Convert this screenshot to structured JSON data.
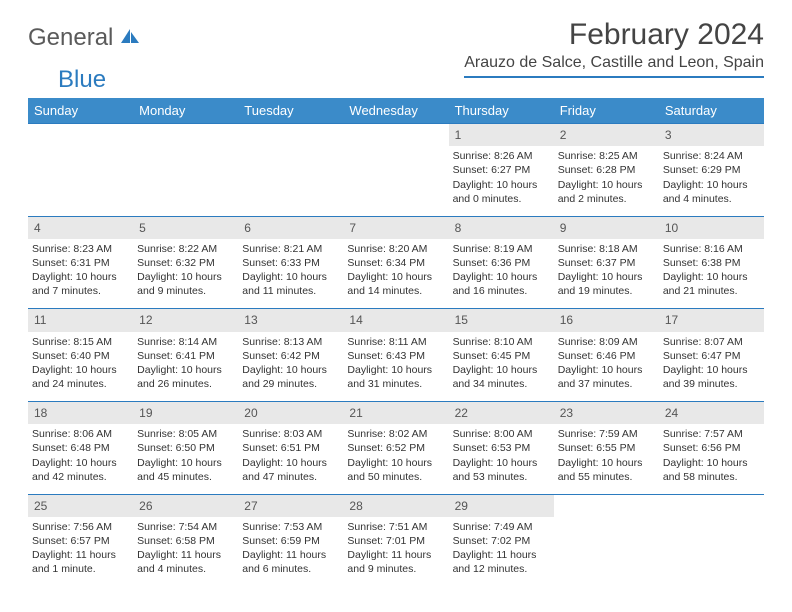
{
  "logo": {
    "text1": "General",
    "text2": "Blue"
  },
  "title": "February 2024",
  "location": "Arauzo de Salce, Castille and Leon, Spain",
  "colors": {
    "header_bg": "#3b8bc9",
    "header_text": "#ffffff",
    "daynum_bg": "#e8e8e8",
    "rule": "#2b7bbf",
    "body_text": "#333333",
    "logo_gray": "#5a5a5a",
    "logo_blue": "#2b7bbf"
  },
  "weekdays": [
    "Sunday",
    "Monday",
    "Tuesday",
    "Wednesday",
    "Thursday",
    "Friday",
    "Saturday"
  ],
  "weeks": [
    {
      "nums": [
        "",
        "",
        "",
        "",
        "1",
        "2",
        "3"
      ],
      "cells": [
        null,
        null,
        null,
        null,
        {
          "sunrise": "Sunrise: 8:26 AM",
          "sunset": "Sunset: 6:27 PM",
          "day1": "Daylight: 10 hours",
          "day2": "and 0 minutes."
        },
        {
          "sunrise": "Sunrise: 8:25 AM",
          "sunset": "Sunset: 6:28 PM",
          "day1": "Daylight: 10 hours",
          "day2": "and 2 minutes."
        },
        {
          "sunrise": "Sunrise: 8:24 AM",
          "sunset": "Sunset: 6:29 PM",
          "day1": "Daylight: 10 hours",
          "day2": "and 4 minutes."
        }
      ]
    },
    {
      "nums": [
        "4",
        "5",
        "6",
        "7",
        "8",
        "9",
        "10"
      ],
      "cells": [
        {
          "sunrise": "Sunrise: 8:23 AM",
          "sunset": "Sunset: 6:31 PM",
          "day1": "Daylight: 10 hours",
          "day2": "and 7 minutes."
        },
        {
          "sunrise": "Sunrise: 8:22 AM",
          "sunset": "Sunset: 6:32 PM",
          "day1": "Daylight: 10 hours",
          "day2": "and 9 minutes."
        },
        {
          "sunrise": "Sunrise: 8:21 AM",
          "sunset": "Sunset: 6:33 PM",
          "day1": "Daylight: 10 hours",
          "day2": "and 11 minutes."
        },
        {
          "sunrise": "Sunrise: 8:20 AM",
          "sunset": "Sunset: 6:34 PM",
          "day1": "Daylight: 10 hours",
          "day2": "and 14 minutes."
        },
        {
          "sunrise": "Sunrise: 8:19 AM",
          "sunset": "Sunset: 6:36 PM",
          "day1": "Daylight: 10 hours",
          "day2": "and 16 minutes."
        },
        {
          "sunrise": "Sunrise: 8:18 AM",
          "sunset": "Sunset: 6:37 PM",
          "day1": "Daylight: 10 hours",
          "day2": "and 19 minutes."
        },
        {
          "sunrise": "Sunrise: 8:16 AM",
          "sunset": "Sunset: 6:38 PM",
          "day1": "Daylight: 10 hours",
          "day2": "and 21 minutes."
        }
      ]
    },
    {
      "nums": [
        "11",
        "12",
        "13",
        "14",
        "15",
        "16",
        "17"
      ],
      "cells": [
        {
          "sunrise": "Sunrise: 8:15 AM",
          "sunset": "Sunset: 6:40 PM",
          "day1": "Daylight: 10 hours",
          "day2": "and 24 minutes."
        },
        {
          "sunrise": "Sunrise: 8:14 AM",
          "sunset": "Sunset: 6:41 PM",
          "day1": "Daylight: 10 hours",
          "day2": "and 26 minutes."
        },
        {
          "sunrise": "Sunrise: 8:13 AM",
          "sunset": "Sunset: 6:42 PM",
          "day1": "Daylight: 10 hours",
          "day2": "and 29 minutes."
        },
        {
          "sunrise": "Sunrise: 8:11 AM",
          "sunset": "Sunset: 6:43 PM",
          "day1": "Daylight: 10 hours",
          "day2": "and 31 minutes."
        },
        {
          "sunrise": "Sunrise: 8:10 AM",
          "sunset": "Sunset: 6:45 PM",
          "day1": "Daylight: 10 hours",
          "day2": "and 34 minutes."
        },
        {
          "sunrise": "Sunrise: 8:09 AM",
          "sunset": "Sunset: 6:46 PM",
          "day1": "Daylight: 10 hours",
          "day2": "and 37 minutes."
        },
        {
          "sunrise": "Sunrise: 8:07 AM",
          "sunset": "Sunset: 6:47 PM",
          "day1": "Daylight: 10 hours",
          "day2": "and 39 minutes."
        }
      ]
    },
    {
      "nums": [
        "18",
        "19",
        "20",
        "21",
        "22",
        "23",
        "24"
      ],
      "cells": [
        {
          "sunrise": "Sunrise: 8:06 AM",
          "sunset": "Sunset: 6:48 PM",
          "day1": "Daylight: 10 hours",
          "day2": "and 42 minutes."
        },
        {
          "sunrise": "Sunrise: 8:05 AM",
          "sunset": "Sunset: 6:50 PM",
          "day1": "Daylight: 10 hours",
          "day2": "and 45 minutes."
        },
        {
          "sunrise": "Sunrise: 8:03 AM",
          "sunset": "Sunset: 6:51 PM",
          "day1": "Daylight: 10 hours",
          "day2": "and 47 minutes."
        },
        {
          "sunrise": "Sunrise: 8:02 AM",
          "sunset": "Sunset: 6:52 PM",
          "day1": "Daylight: 10 hours",
          "day2": "and 50 minutes."
        },
        {
          "sunrise": "Sunrise: 8:00 AM",
          "sunset": "Sunset: 6:53 PM",
          "day1": "Daylight: 10 hours",
          "day2": "and 53 minutes."
        },
        {
          "sunrise": "Sunrise: 7:59 AM",
          "sunset": "Sunset: 6:55 PM",
          "day1": "Daylight: 10 hours",
          "day2": "and 55 minutes."
        },
        {
          "sunrise": "Sunrise: 7:57 AM",
          "sunset": "Sunset: 6:56 PM",
          "day1": "Daylight: 10 hours",
          "day2": "and 58 minutes."
        }
      ]
    },
    {
      "nums": [
        "25",
        "26",
        "27",
        "28",
        "29",
        "",
        ""
      ],
      "cells": [
        {
          "sunrise": "Sunrise: 7:56 AM",
          "sunset": "Sunset: 6:57 PM",
          "day1": "Daylight: 11 hours",
          "day2": "and 1 minute."
        },
        {
          "sunrise": "Sunrise: 7:54 AM",
          "sunset": "Sunset: 6:58 PM",
          "day1": "Daylight: 11 hours",
          "day2": "and 4 minutes."
        },
        {
          "sunrise": "Sunrise: 7:53 AM",
          "sunset": "Sunset: 6:59 PM",
          "day1": "Daylight: 11 hours",
          "day2": "and 6 minutes."
        },
        {
          "sunrise": "Sunrise: 7:51 AM",
          "sunset": "Sunset: 7:01 PM",
          "day1": "Daylight: 11 hours",
          "day2": "and 9 minutes."
        },
        {
          "sunrise": "Sunrise: 7:49 AM",
          "sunset": "Sunset: 7:02 PM",
          "day1": "Daylight: 11 hours",
          "day2": "and 12 minutes."
        },
        null,
        null
      ]
    }
  ]
}
